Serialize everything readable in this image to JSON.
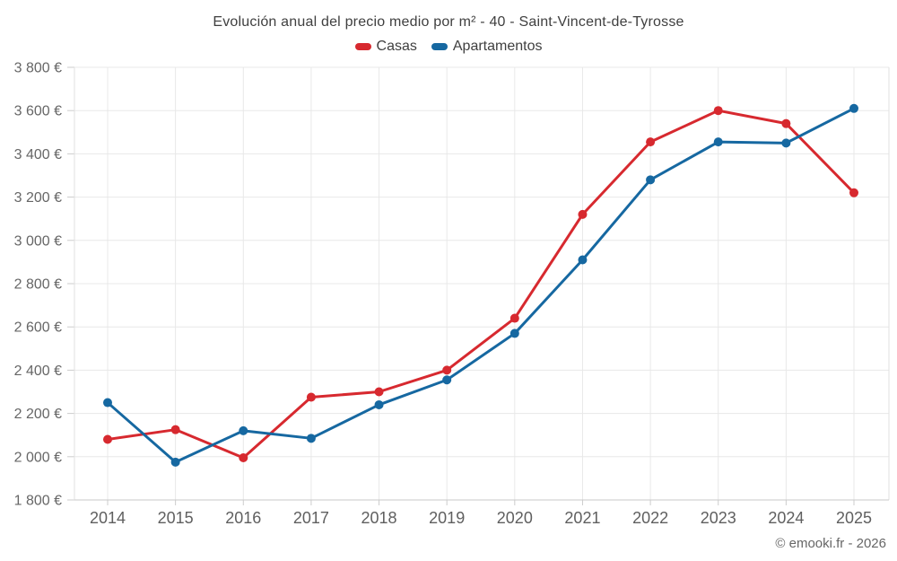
{
  "header": {
    "title": "Evolución anual del precio medio por m² - 40 - Saint-Vincent-de-Tyrosse"
  },
  "legend": {
    "items": [
      {
        "label": "Casas",
        "color": "#d7292f"
      },
      {
        "label": "Apartamentos",
        "color": "#1668a1"
      }
    ]
  },
  "footer": {
    "text": "© emooki.fr - 2026"
  },
  "chart_data": {
    "type": "line",
    "title": "Evolución anual del precio medio por m² - 40 - Saint-Vincent-de-Tyrosse",
    "categories": [
      "2014",
      "2015",
      "2016",
      "2017",
      "2018",
      "2019",
      "2020",
      "2021",
      "2022",
      "2023",
      "2024",
      "2025"
    ],
    "series": [
      {
        "name": "Casas",
        "color": "#d7292f",
        "values": [
          2080,
          2125,
          1995,
          2275,
          2300,
          2400,
          2640,
          3120,
          3455,
          3600,
          3540,
          3220
        ]
      },
      {
        "name": "Apartamentos",
        "color": "#1668a1",
        "values": [
          2250,
          1975,
          2120,
          2085,
          2240,
          2355,
          2570,
          2910,
          3280,
          3455,
          3450,
          3610
        ]
      }
    ],
    "xlabel": "",
    "ylabel": "",
    "ylim": [
      1800,
      3800
    ],
    "ytick_step": 200,
    "ytick_format": "{value} €",
    "grid": true,
    "legend_position": "top",
    "marker": "circle"
  },
  "style_colors": {
    "grid": "#e8e8e8",
    "border": "#e2e2e2",
    "axis": "#c9c9c9",
    "tick": "#cccccc"
  }
}
